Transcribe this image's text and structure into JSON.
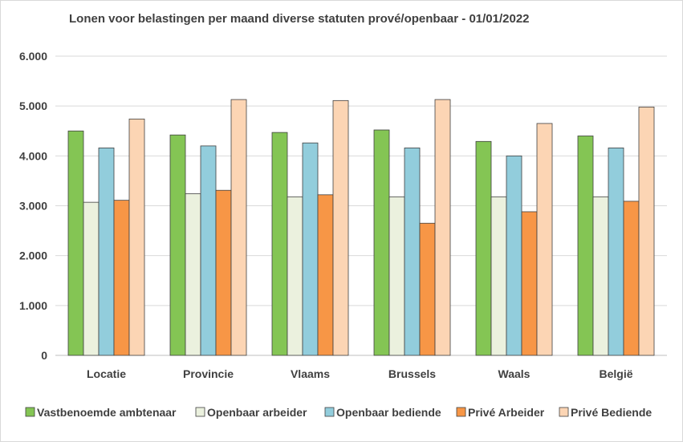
{
  "chart_data": {
    "type": "bar",
    "title": "Lonen voor belastingen per maand diverse statuten prové/openbaar - 01/01/2022",
    "xlabel": "",
    "ylabel": "",
    "categories": [
      "Locatie",
      "Provincie",
      "Vlaams",
      "Brussels",
      "Waals",
      "België"
    ],
    "series": [
      {
        "name": "Vastbenoemde ambtenaar",
        "color": "#84c554",
        "values": [
          4500,
          4420,
          4470,
          4520,
          4290,
          4400
        ]
      },
      {
        "name": "Openbaar arbeider",
        "color": "#ebf1de",
        "values": [
          3070,
          3240,
          3180,
          3180,
          3180,
          3180
        ]
      },
      {
        "name": "Openbaar bediende",
        "color": "#92cddc",
        "values": [
          4160,
          4200,
          4260,
          4160,
          4000,
          4160
        ]
      },
      {
        "name": "Privé Arbeider",
        "color": "#f79646",
        "values": [
          3110,
          3310,
          3220,
          2650,
          2880,
          3090
        ]
      },
      {
        "name": "Privé Bediende",
        "color": "#fcd5b4",
        "values": [
          4740,
          5130,
          5110,
          5130,
          4650,
          4980
        ]
      }
    ],
    "ylim": [
      0,
      6000
    ],
    "yticks": [
      "0",
      "1.000",
      "2.000",
      "3.000",
      "4.000",
      "5.000",
      "6.000"
    ],
    "grid": true,
    "legend_position": "bottom"
  }
}
